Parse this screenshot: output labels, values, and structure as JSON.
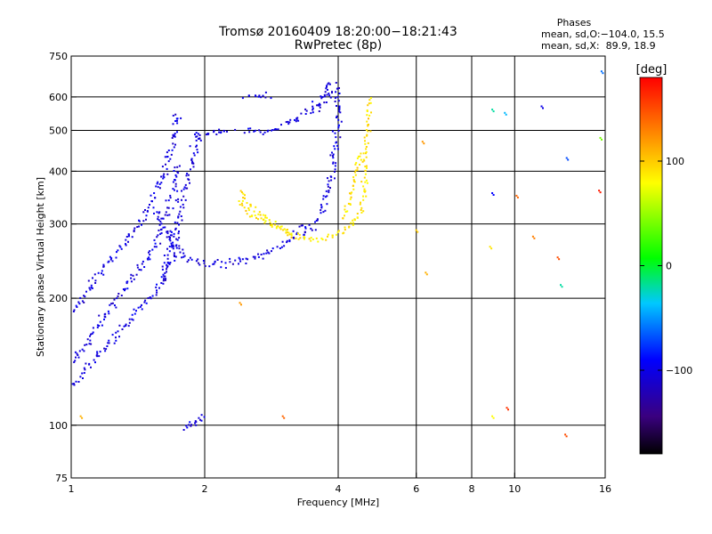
{
  "chart_data": {
    "type": "scatter",
    "title": "Tromsø 20160409 18:20:00−18:21:43",
    "subtitle": "RwPretec (8p)",
    "xlabel": "Frequency [MHz]",
    "ylabel": "Stationary phase Virtual Height [km]",
    "xscale": "log",
    "yscale": "log",
    "xlim": [
      1,
      16
    ],
    "ylim": [
      75,
      750
    ],
    "x_ticks": [
      {
        "v": 1,
        "label": "1"
      },
      {
        "v": 2,
        "label": "2"
      },
      {
        "v": 4,
        "label": "4"
      },
      {
        "v": 6,
        "label": "6"
      },
      {
        "v": 8,
        "label": "8"
      },
      {
        "v": 10,
        "label": "10"
      },
      {
        "v": 16,
        "label": "16"
      }
    ],
    "x_grid": [
      2,
      4,
      6,
      8,
      10
    ],
    "y_ticks": [
      {
        "v": 75,
        "label": "75"
      },
      {
        "v": 100,
        "label": "100"
      },
      {
        "v": 200,
        "label": "200"
      },
      {
        "v": 300,
        "label": "300"
      },
      {
        "v": 400,
        "label": "400"
      },
      {
        "v": 500,
        "label": "500"
      },
      {
        "v": 600,
        "label": "600"
      },
      {
        "v": 750,
        "label": "750"
      }
    ],
    "y_grid": [
      100,
      200,
      300,
      400,
      500,
      600
    ],
    "grid": true,
    "phase_box": {
      "heading": "Phases",
      "line1": "mean, sd,O:−104.0, 15.5",
      "line2": "mean, sd,X:  89.9, 18.9"
    },
    "colorbar": {
      "label": "[deg]",
      "range": [
        -180,
        180
      ],
      "ticks": [
        {
          "v": 100,
          "label": "100"
        },
        {
          "v": 0,
          "label": "0"
        },
        {
          "v": -100,
          "label": "−100"
        }
      ]
    },
    "series": [
      {
        "mode": "O",
        "phase": -104,
        "traces": [
          {
            "x": [
              1.0,
              1.05,
              1.12,
              1.2,
              1.3,
              1.4,
              1.5,
              1.6,
              1.65,
              1.7,
              1.75
            ],
            "y": [
              140,
              150,
              165,
              185,
              205,
              230,
              255,
              285,
              320,
              360,
              420
            ]
          },
          {
            "x": [
              1.0,
              1.05,
              1.1,
              1.15,
              1.2,
              1.3,
              1.4,
              1.5,
              1.6,
              1.7,
              1.75
            ],
            "y": [
              185,
              195,
              210,
              225,
              240,
              265,
              290,
              325,
              380,
              460,
              560
            ]
          },
          {
            "x": [
              1.0,
              1.05,
              1.1,
              1.2,
              1.3,
              1.4,
              1.5,
              1.6,
              1.7,
              1.75
            ],
            "y": [
              125,
              130,
              140,
              155,
              170,
              185,
              200,
              220,
              250,
              290
            ]
          },
          {
            "x": [
              1.55,
              1.6,
              1.65,
              1.7,
              1.75,
              1.8,
              1.9,
              2.0,
              2.2,
              2.5,
              2.8,
              3.0,
              3.2,
              3.4
            ],
            "y": [
              320,
              300,
              285,
              270,
              260,
              252,
              246,
              242,
              242,
              248,
              258,
              265,
              280,
              300
            ]
          },
          {
            "x": [
              1.6,
              1.65,
              1.7,
              1.75,
              1.8,
              1.85,
              1.9,
              1.95
            ],
            "y": [
              220,
              250,
              280,
              320,
              360,
              400,
              450,
              500
            ]
          },
          {
            "x": [
              1.9,
              2.0,
              2.1,
              2.2,
              2.3
            ],
            "y": [
              485,
              490,
              495,
              500,
              510
            ]
          },
          {
            "x": [
              2.5,
              2.7,
              2.9,
              3.1,
              3.3,
              3.5,
              3.7,
              3.9,
              4.0
            ],
            "y": [
              495,
              500,
              505,
              520,
              540,
              560,
              590,
              620,
              640
            ]
          },
          {
            "x": [
              3.3,
              3.4,
              3.5,
              3.6,
              3.7,
              3.8,
              3.9,
              3.95,
              4.0,
              4.0
            ],
            "y": [
              280,
              285,
              295,
              310,
              330,
              360,
              400,
              460,
              540,
              620
            ]
          },
          {
            "x": [
              3.6,
              3.7,
              3.8,
              3.9
            ],
            "y": [
              560,
              600,
              640,
              660
            ]
          },
          {
            "x": [
              1.8,
              1.85,
              1.9,
              1.95,
              2.0
            ],
            "y": [
              100,
              101,
              102,
              103,
              104
            ]
          },
          {
            "x": [
              2.5,
              2.6,
              2.7,
              2.8
            ],
            "y": [
              590,
              600,
              605,
              610
            ]
          }
        ]
      },
      {
        "mode": "X",
        "phase": 90,
        "traces": [
          {
            "x": [
              2.4,
              2.5,
              2.7,
              2.9,
              3.1,
              3.3,
              3.5,
              3.7,
              3.9,
              4.1,
              4.3,
              4.5,
              4.6,
              4.6,
              4.65,
              4.7
            ],
            "y": [
              340,
              320,
              305,
              295,
              285,
              278,
              275,
              276,
              280,
              290,
              300,
              320,
              360,
              420,
              500,
              600
            ]
          },
          {
            "x": [
              2.4,
              2.5,
              2.6,
              2.8,
              3.0,
              3.2
            ],
            "y": [
              360,
              340,
              325,
              305,
              290,
              282
            ]
          },
          {
            "x": [
              4.1,
              4.2,
              4.3,
              4.4,
              4.5
            ],
            "y": [
              310,
              330,
              360,
              400,
              450
            ]
          }
        ]
      },
      {
        "mode": "scattered",
        "points": [
          {
            "x": 1.05,
            "y": 105,
            "p": 110
          },
          {
            "x": 2.4,
            "y": 195,
            "p": 120
          },
          {
            "x": 3.0,
            "y": 105,
            "p": 140
          },
          {
            "x": 6.0,
            "y": 290,
            "p": 100
          },
          {
            "x": 6.2,
            "y": 470,
            "p": 120
          },
          {
            "x": 6.3,
            "y": 230,
            "p": 110
          },
          {
            "x": 8.8,
            "y": 265,
            "p": 90
          },
          {
            "x": 8.9,
            "y": 355,
            "p": -90
          },
          {
            "x": 8.9,
            "y": 560,
            "p": -20
          },
          {
            "x": 8.9,
            "y": 105,
            "p": 80
          },
          {
            "x": 9.5,
            "y": 550,
            "p": -40
          },
          {
            "x": 9.6,
            "y": 110,
            "p": 160
          },
          {
            "x": 10.1,
            "y": 350,
            "p": 140
          },
          {
            "x": 11.0,
            "y": 280,
            "p": 130
          },
          {
            "x": 11.5,
            "y": 570,
            "p": -100
          },
          {
            "x": 12.5,
            "y": 250,
            "p": 150
          },
          {
            "x": 12.7,
            "y": 215,
            "p": -20
          },
          {
            "x": 13.0,
            "y": 95,
            "p": 150
          },
          {
            "x": 13.1,
            "y": 430,
            "p": -70
          },
          {
            "x": 15.5,
            "y": 360,
            "p": 170
          },
          {
            "x": 15.6,
            "y": 480,
            "p": 40
          },
          {
            "x": 15.7,
            "y": 690,
            "p": -60
          }
        ]
      }
    ]
  }
}
